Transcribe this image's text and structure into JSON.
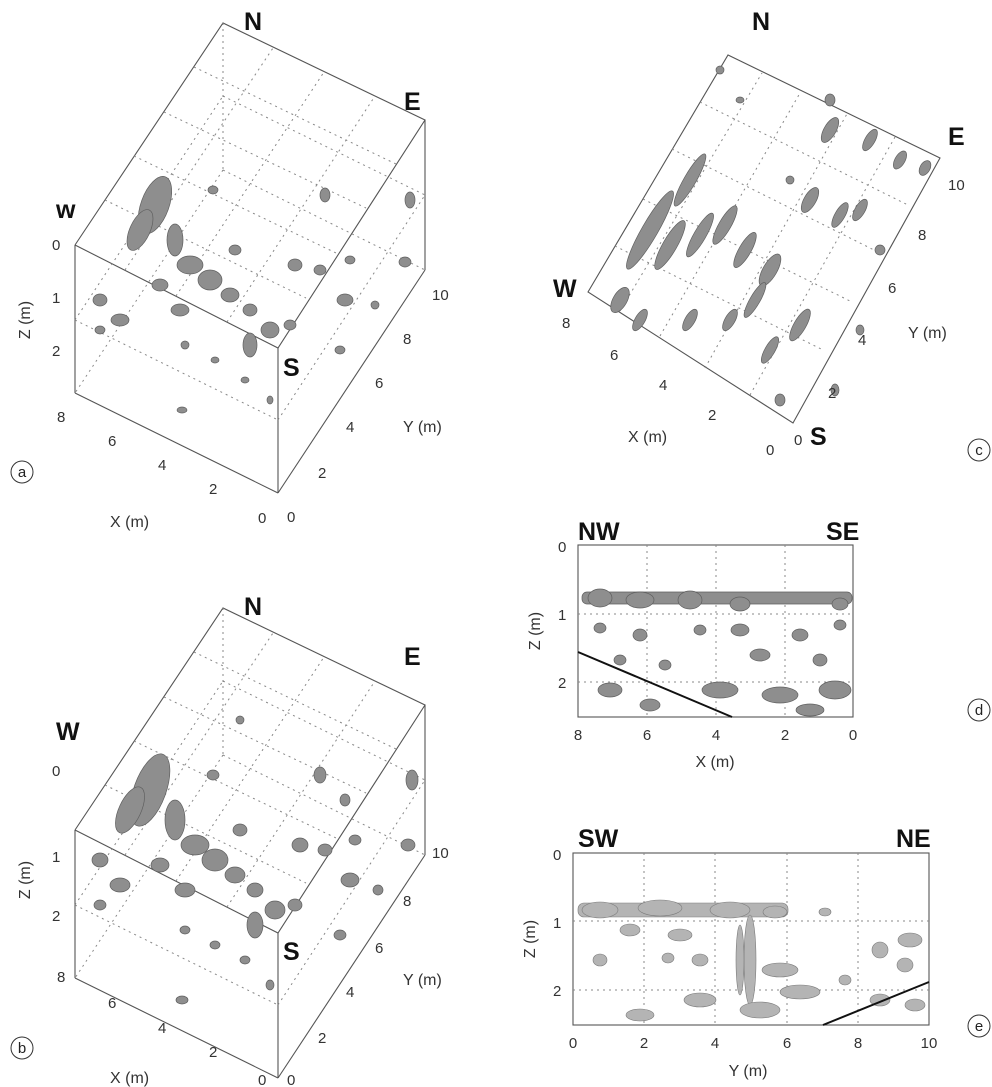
{
  "panels": {
    "a": {
      "label": "a",
      "directions": {
        "n": "N",
        "e": "E",
        "w": "w",
        "s": "S"
      },
      "z_axis": {
        "label": "Z (m)",
        "ticks": [
          "0",
          "1",
          "2"
        ]
      },
      "x_axis": {
        "label": "X (m)",
        "ticks": [
          "8",
          "6",
          "4",
          "2",
          "0"
        ]
      },
      "y_axis": {
        "label": "Y (m)",
        "ticks": [
          "0",
          "2",
          "4",
          "6",
          "8",
          "10"
        ]
      }
    },
    "b": {
      "label": "b",
      "directions": {
        "n": "N",
        "e": "E",
        "w": "W",
        "s": "S"
      },
      "z_axis": {
        "label": "Z (m)",
        "ticks": [
          "0",
          "1",
          "2"
        ]
      },
      "x_axis": {
        "label": "X (m)",
        "ticks": [
          "8",
          "6",
          "4",
          "2",
          "0"
        ]
      },
      "y_axis": {
        "label": "Y (m)",
        "ticks": [
          "0",
          "2",
          "4",
          "6",
          "8",
          "10"
        ]
      }
    },
    "c": {
      "label": "c",
      "directions": {
        "n": "N",
        "e": "E",
        "w": "W",
        "s": "S"
      },
      "x_axis": {
        "label": "X (m)",
        "ticks": [
          "8",
          "6",
          "4",
          "2",
          "0"
        ]
      },
      "y_axis": {
        "label": "Y (m)",
        "ticks": [
          "0",
          "2",
          "4",
          "6",
          "8",
          "10"
        ]
      }
    },
    "d": {
      "label": "d",
      "directions": {
        "left": "NW",
        "right": "SE"
      },
      "z_axis": {
        "label": "Z (m)",
        "ticks": [
          "0",
          "1",
          "2"
        ]
      },
      "x_axis": {
        "label": "X (m)",
        "ticks": [
          "8",
          "6",
          "4",
          "2",
          "0"
        ]
      }
    },
    "e": {
      "label": "e",
      "directions": {
        "left": "SW",
        "right": "NE"
      },
      "z_axis": {
        "label": "Z (m)",
        "ticks": [
          "0",
          "1",
          "2"
        ]
      },
      "y_axis": {
        "label": "Y (m)",
        "ticks": [
          "0",
          "2",
          "4",
          "6",
          "8",
          "10"
        ]
      }
    }
  }
}
